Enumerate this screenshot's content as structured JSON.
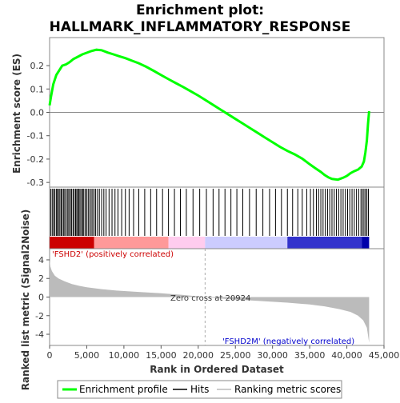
{
  "chart_data": [
    {
      "type": "line",
      "title": "Enrichment plot:",
      "subtitle": "HALLMARK_INFLAMMATORY_RESPONSE",
      "ylabel": "Enrichment score (ES)",
      "xlim": [
        0,
        45000
      ],
      "ylim": [
        -0.32,
        0.32
      ],
      "y_ticks": [
        0.2,
        0.1,
        0.0,
        -0.1,
        -0.2,
        -0.3
      ],
      "y_tick_labels": [
        "0.2",
        "0.1",
        "0.0",
        "-0.1",
        "-0.2",
        "-0.3"
      ],
      "grid": false,
      "zero_line": true,
      "series": [
        {
          "name": "Enrichment profile",
          "color": "#00ff00",
          "x": [
            0,
            200,
            500,
            900,
            1300,
            1700,
            2200,
            2700,
            3200,
            3800,
            4400,
            5000,
            5600,
            6300,
            7000,
            7800,
            8600,
            9400,
            10200,
            11000,
            12000,
            13000,
            14000,
            15000,
            16000,
            17000,
            18000,
            19000,
            20000,
            21000,
            22000,
            23000,
            24000,
            25000,
            26000,
            27000,
            28000,
            29000,
            30000,
            31000,
            32000,
            33000,
            34000,
            35000,
            35800,
            36500,
            37000,
            37500,
            38000,
            38800,
            39500,
            40000,
            40500,
            41000,
            41500,
            42000,
            42300,
            42500,
            42700,
            42850,
            43000
          ],
          "y": [
            0.03,
            0.07,
            0.12,
            0.16,
            0.18,
            0.2,
            0.205,
            0.215,
            0.228,
            0.238,
            0.248,
            0.255,
            0.262,
            0.268,
            0.266,
            0.256,
            0.248,
            0.24,
            0.232,
            0.222,
            0.21,
            0.195,
            0.178,
            0.16,
            0.142,
            0.125,
            0.108,
            0.09,
            0.072,
            0.052,
            0.032,
            0.012,
            -0.008,
            -0.028,
            -0.048,
            -0.068,
            -0.088,
            -0.108,
            -0.128,
            -0.148,
            -0.165,
            -0.18,
            -0.198,
            -0.222,
            -0.24,
            -0.255,
            -0.268,
            -0.278,
            -0.285,
            -0.288,
            -0.28,
            -0.272,
            -0.26,
            -0.252,
            -0.245,
            -0.232,
            -0.21,
            -0.17,
            -0.12,
            -0.05,
            0.005
          ]
        }
      ]
    },
    {
      "type": "heatmap",
      "legend": "Hits",
      "xlim": [
        0,
        45000
      ],
      "hit_positions": [
        150,
        350,
        520,
        700,
        900,
        1050,
        1200,
        1380,
        1550,
        1700,
        1900,
        2050,
        2250,
        2450,
        2600,
        2800,
        2950,
        3150,
        3300,
        3500,
        3650,
        3800,
        3950,
        4100,
        4300,
        4450,
        4600,
        4800,
        5000,
        5200,
        5400,
        5600,
        5800,
        6000,
        6200,
        6450,
        6700,
        7000,
        7300,
        7600,
        8000,
        8400,
        8800,
        9200,
        9700,
        10200,
        10700,
        11300,
        12000,
        12800,
        13600,
        14400,
        15200,
        16000,
        16800,
        17600,
        18400,
        19300,
        20200,
        21100,
        22000,
        22800,
        23600,
        24400,
        25200,
        26000,
        26900,
        27800,
        28700,
        29600,
        30400,
        31200,
        32000,
        32700,
        33400,
        34000,
        34600,
        35100,
        35500,
        35900,
        36200,
        36500,
        36800,
        37100,
        37400,
        37700,
        38000,
        38300,
        38600,
        38900,
        39200,
        39500,
        39800,
        40100,
        40400,
        40700,
        41000,
        41300,
        41600,
        41900,
        42100,
        42300,
        42500,
        42700,
        42900
      ],
      "colorbar": [
        "#cc0000",
        "#ff9999",
        "#ffccee",
        "#ccccff",
        "#3333cc",
        "#0000aa"
      ]
    },
    {
      "type": "area",
      "xlabel": "Rank in Ordered Dataset",
      "ylabel": "Ranked list metric (Signal2Noise)",
      "xlim": [
        0,
        45000
      ],
      "ylim": [
        -5.2,
        5.2
      ],
      "x_ticks": [
        0,
        5000,
        10000,
        15000,
        20000,
        25000,
        30000,
        35000,
        40000,
        45000
      ],
      "x_tick_labels": [
        "0",
        "5,000",
        "10,000",
        "15,000",
        "20,000",
        "25,000",
        "30,000",
        "35,000",
        "40,000",
        "45,000"
      ],
      "y_ticks": [
        4,
        2,
        0,
        -2,
        -4
      ],
      "y_tick_labels": [
        "4",
        "2",
        "0",
        "-2",
        "-4"
      ],
      "series": [
        {
          "name": "Ranking metric scores",
          "color": "#bbbbbb",
          "x": [
            0,
            100,
            300,
            700,
            1200,
            2000,
            3000,
            4000,
            5000,
            7000,
            9000,
            12000,
            15000,
            18000,
            20924,
            24000,
            28000,
            32000,
            35000,
            37000,
            39000,
            40500,
            41500,
            42200,
            42700,
            43000
          ],
          "y": [
            4.0,
            3.3,
            2.8,
            2.3,
            2.0,
            1.7,
            1.4,
            1.2,
            1.05,
            0.85,
            0.7,
            0.55,
            0.4,
            0.22,
            0.0,
            -0.22,
            -0.4,
            -0.6,
            -0.8,
            -1.0,
            -1.3,
            -1.6,
            -2.0,
            -2.5,
            -3.3,
            -4.9
          ]
        }
      ],
      "annotations": {
        "zero_cross": "Zero cross at 20924",
        "positive": "'FSHD2' (positively correlated)",
        "negative": "'FSHD2M' (negatively correlated)"
      }
    }
  ],
  "legend": {
    "items": [
      {
        "label": "Enrichment profile",
        "color": "#00ff00"
      },
      {
        "label": "Hits",
        "color": "#000000"
      },
      {
        "label": "Ranking metric scores",
        "color": "#bbbbbb"
      }
    ]
  }
}
